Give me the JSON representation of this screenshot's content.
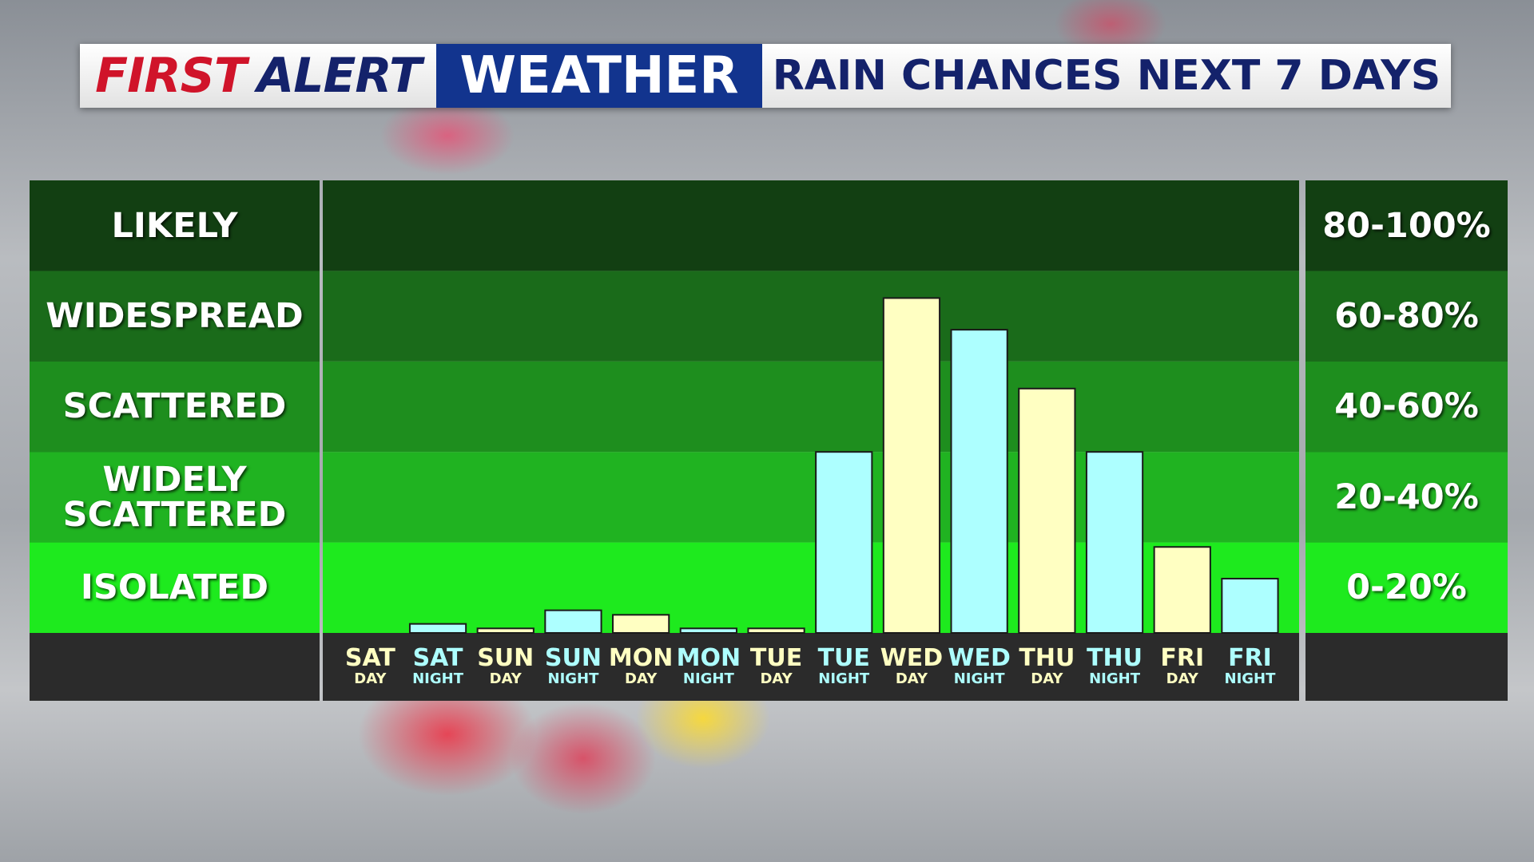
{
  "header": {
    "brand_first": "FIRST",
    "brand_alert": "ALERT",
    "brand_weather": "WEATHER",
    "title": "RAIN CHANCES NEXT 7 DAYS"
  },
  "chart_data": {
    "type": "bar",
    "categories": [
      [
        "SAT",
        "DAY"
      ],
      [
        "SAT",
        "NIGHT"
      ],
      [
        "SUN",
        "DAY"
      ],
      [
        "SUN",
        "NIGHT"
      ],
      [
        "MON",
        "DAY"
      ],
      [
        "MON",
        "NIGHT"
      ],
      [
        "TUE",
        "DAY"
      ],
      [
        "TUE",
        "NIGHT"
      ],
      [
        "WED",
        "DAY"
      ],
      [
        "WED",
        "NIGHT"
      ],
      [
        "THU",
        "DAY"
      ],
      [
        "THU",
        "NIGHT"
      ],
      [
        "FRI",
        "DAY"
      ],
      [
        "FRI",
        "NIGHT"
      ]
    ],
    "values": [
      0,
      2,
      1,
      5,
      4,
      1,
      1,
      40,
      74,
      67,
      54,
      40,
      19,
      12
    ],
    "colors": [
      "#ffffc2",
      "#adffff",
      "#ffffc2",
      "#adffff",
      "#ffffc2",
      "#adffff",
      "#ffffc2",
      "#adffff",
      "#ffffc2",
      "#adffff",
      "#ffffc2",
      "#adffff",
      "#ffffc2",
      "#adffff"
    ],
    "ylim": [
      0,
      100
    ],
    "bands": [
      {
        "from": 80,
        "to": 100,
        "label": "LIKELY",
        "range_label": "80-100%",
        "color": "#123f12"
      },
      {
        "from": 60,
        "to": 80,
        "label": "WIDESPREAD",
        "range_label": "60-80%",
        "color": "#1a6b1a"
      },
      {
        "from": 40,
        "to": 60,
        "label": "SCATTERED",
        "range_label": "40-60%",
        "color": "#1e8e1e"
      },
      {
        "from": 20,
        "to": 40,
        "label": "WIDELY SCATTERED",
        "range_label": "20-40%",
        "color": "#20b321"
      },
      {
        "from": 0,
        "to": 20,
        "label": "ISOLATED",
        "range_label": "0-20%",
        "color": "#1eea1e"
      }
    ]
  }
}
